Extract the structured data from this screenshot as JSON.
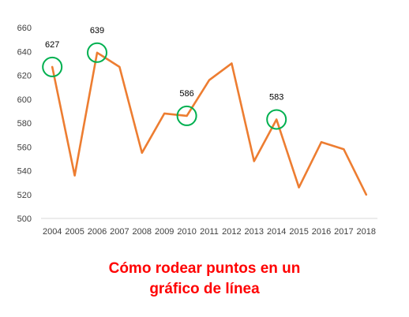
{
  "caption": {
    "line1": "Cómo rodear puntos en un",
    "line2": "gráfico de línea"
  },
  "colors": {
    "line": "#ED7D31",
    "circle": "#00B050",
    "caption": "#FF0000",
    "axis": "#D9D9D9",
    "tick_text": "#404040"
  },
  "chart_data": {
    "type": "line",
    "title": "",
    "xlabel": "",
    "ylabel": "",
    "grid": false,
    "ylim": [
      500,
      660
    ],
    "yticks": [
      500,
      520,
      540,
      560,
      580,
      600,
      620,
      640,
      660
    ],
    "categories": [
      "2004",
      "2005",
      "2006",
      "2007",
      "2008",
      "2009",
      "2010",
      "2011",
      "2012",
      "2013",
      "2014",
      "2015",
      "2016",
      "2017",
      "2018"
    ],
    "series": [
      {
        "values": [
          627,
          536,
          639,
          627,
          555,
          588,
          586,
          616,
          630,
          548,
          583,
          526,
          564,
          558,
          520
        ]
      }
    ],
    "annotations": [
      {
        "category": "2004",
        "label": "627",
        "circled": true
      },
      {
        "category": "2006",
        "label": "639",
        "circled": true
      },
      {
        "category": "2010",
        "label": "586",
        "circled": true
      },
      {
        "category": "2014",
        "label": "583",
        "circled": true
      }
    ]
  }
}
